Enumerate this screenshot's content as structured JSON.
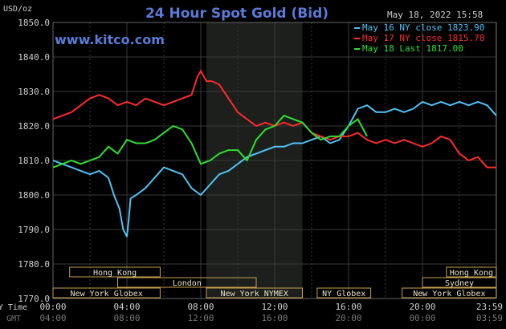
{
  "chart_data": {
    "type": "line",
    "title": "24 Hour Spot Gold (Bid)",
    "watermark": "www.kitco.com",
    "timestamp": "May 18, 2022 15:58",
    "yaxis_unit": "USD/oz",
    "ylim": [
      1770,
      1850
    ],
    "yticks": [
      "1850.0",
      "1840.0",
      "1830.0",
      "1820.0",
      "1810.0",
      "1800.0",
      "1790.0",
      "1780.0",
      "1770.0"
    ],
    "xlim_hours": [
      0,
      24
    ],
    "x_row_labels": {
      "ny": "NY Time",
      "gmt": "GMT"
    },
    "xticks": [
      {
        "h": 0,
        "ny": "00:00",
        "gmt": "04:00"
      },
      {
        "h": 4,
        "ny": "04:00",
        "gmt": "08:00"
      },
      {
        "h": 8,
        "ny": "08:00",
        "gmt": "12:00"
      },
      {
        "h": 12,
        "ny": "12:00",
        "gmt": "16:00"
      },
      {
        "h": 16,
        "ny": "16:00",
        "gmt": "20:00"
      },
      {
        "h": 20,
        "ny": "20:00",
        "gmt": "00:00"
      },
      {
        "h": 23.98,
        "ny": "23:59",
        "gmt": "03:59"
      }
    ],
    "highlight_hours": [
      8.3,
      13.5
    ],
    "grid": true,
    "legend_position": "top-right",
    "colors": {
      "background": "#000000",
      "grid": "#3a3a3a",
      "text": "#cfcfcf",
      "title": "#5a7bd8",
      "highlight": "#1c1f1c",
      "session": "#c8a050"
    },
    "sessions": [
      {
        "name": "Hong Kong",
        "row": 0,
        "start": 0.9,
        "end": 5.8
      },
      {
        "name": "London",
        "row": 1,
        "start": 3.5,
        "end": 11.0
      },
      {
        "name": "New York Globex",
        "row": 2,
        "start": 0.0,
        "end": 5.8
      },
      {
        "name": "New York NYMEX",
        "row": 2,
        "start": 8.3,
        "end": 13.5
      },
      {
        "name": "NY Globex",
        "row": 2,
        "start": 14.3,
        "end": 17.2
      },
      {
        "name": "Hong Kong",
        "row": 0,
        "start": 21.3,
        "end": 24.0
      },
      {
        "name": "Sydney",
        "row": 1,
        "start": 20.0,
        "end": 24.0
      },
      {
        "name": "New York Globex",
        "row": 2,
        "start": 18.9,
        "end": 24.0
      }
    ],
    "series": [
      {
        "name": "May 16 NY close 1823.90",
        "color": "#4fc3f7",
        "x": [
          0,
          0.5,
          1,
          1.5,
          2,
          2.5,
          3,
          3.3,
          3.6,
          3.8,
          4.0,
          4.1,
          4.2,
          4.5,
          5,
          5.5,
          6,
          6.5,
          7,
          7.5,
          8,
          8.5,
          9,
          9.5,
          10,
          10.5,
          11,
          11.5,
          12,
          12.5,
          13,
          13.5,
          14,
          14.5,
          15,
          15.5,
          16,
          16.5,
          17,
          17.5,
          18,
          18.5,
          19,
          19.5,
          20,
          20.5,
          21,
          21.5,
          22,
          22.5,
          23,
          23.5,
          24
        ],
        "y": [
          1810,
          1809,
          1808,
          1807,
          1806,
          1807,
          1805,
          1800,
          1796,
          1790,
          1788,
          1793,
          1799,
          1800,
          1802,
          1805,
          1808,
          1807,
          1806,
          1802,
          1800,
          1803,
          1806,
          1807,
          1809,
          1811,
          1812,
          1813,
          1814,
          1814,
          1815,
          1815,
          1816,
          1817,
          1815,
          1816,
          1820,
          1825,
          1826,
          1824,
          1824,
          1825,
          1824,
          1825,
          1827,
          1826,
          1827,
          1826,
          1827,
          1826,
          1827,
          1826,
          1823
        ]
      },
      {
        "name": "May 17 NY close 1815.70",
        "color": "#ff2a2a",
        "x": [
          0,
          0.5,
          1,
          1.5,
          2,
          2.5,
          3,
          3.5,
          4,
          4.5,
          5,
          5.5,
          6,
          6.5,
          7,
          7.5,
          7.8,
          8.0,
          8.3,
          8.6,
          9,
          9.5,
          10,
          10.5,
          11,
          11.5,
          12,
          12.5,
          13,
          13.5,
          14,
          14.5,
          15,
          15.5,
          16,
          16.5,
          17,
          17.5,
          18,
          18.5,
          19,
          19.5,
          20,
          20.5,
          21,
          21.5,
          22,
          22.5,
          23,
          23.5,
          24
        ],
        "y": [
          1822,
          1823,
          1824,
          1826,
          1828,
          1829,
          1828,
          1826,
          1827,
          1826,
          1828,
          1827,
          1826,
          1827,
          1828,
          1829,
          1834,
          1836,
          1833,
          1833,
          1832,
          1828,
          1824,
          1822,
          1820,
          1821,
          1820,
          1821,
          1820,
          1821,
          1818,
          1817,
          1816,
          1817,
          1817,
          1818,
          1816,
          1815,
          1816,
          1815,
          1816,
          1815,
          1814,
          1815,
          1817,
          1816,
          1812,
          1810,
          1811,
          1808,
          1808
        ]
      },
      {
        "name": "May 18 Last 1817.00",
        "color": "#2ee02e",
        "x": [
          0,
          0.5,
          1,
          1.5,
          2,
          2.5,
          3,
          3.5,
          4,
          4.5,
          5,
          5.5,
          6,
          6.5,
          7,
          7.5,
          8,
          8.5,
          9,
          9.5,
          10,
          10.5,
          11,
          11.5,
          12,
          12.5,
          13,
          13.5,
          14,
          14.5,
          15,
          15.5,
          16,
          16.5,
          17
        ],
        "y": [
          1808,
          1809,
          1810,
          1809,
          1810,
          1811,
          1814,
          1812,
          1816,
          1815,
          1815,
          1816,
          1818,
          1820,
          1819,
          1815,
          1809,
          1810,
          1812,
          1813,
          1813,
          1810,
          1816,
          1819,
          1820,
          1823,
          1822,
          1821,
          1818,
          1816,
          1817,
          1817,
          1820,
          1822,
          1817
        ]
      }
    ]
  }
}
